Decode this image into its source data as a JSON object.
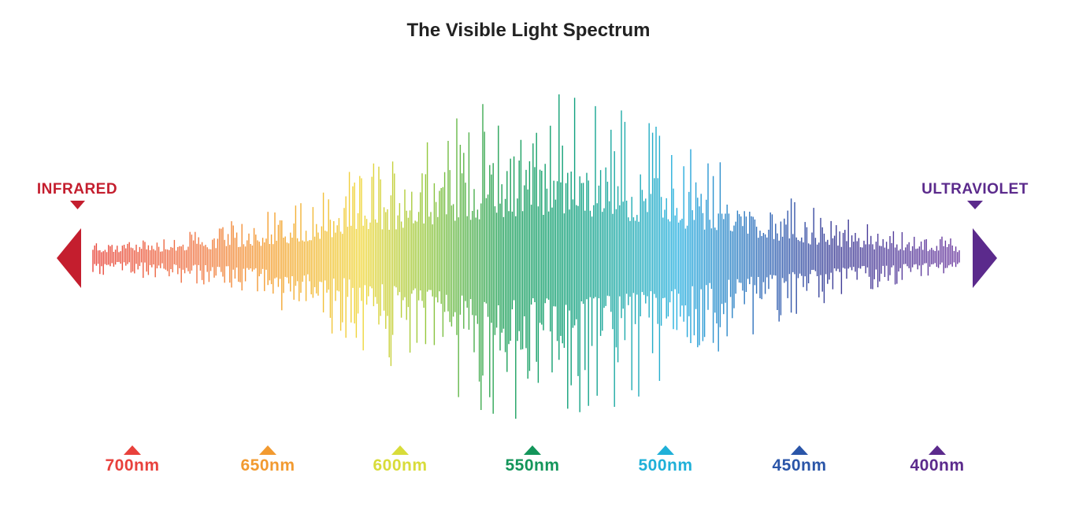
{
  "title": "The Visible Light Spectrum",
  "left_label": "INFRARED",
  "right_label": "ULTRAVIOLET",
  "wavelengths": [
    "700nm",
    "650nm",
    "600nm",
    "550nm",
    "500nm",
    "450nm",
    "400nm"
  ]
}
